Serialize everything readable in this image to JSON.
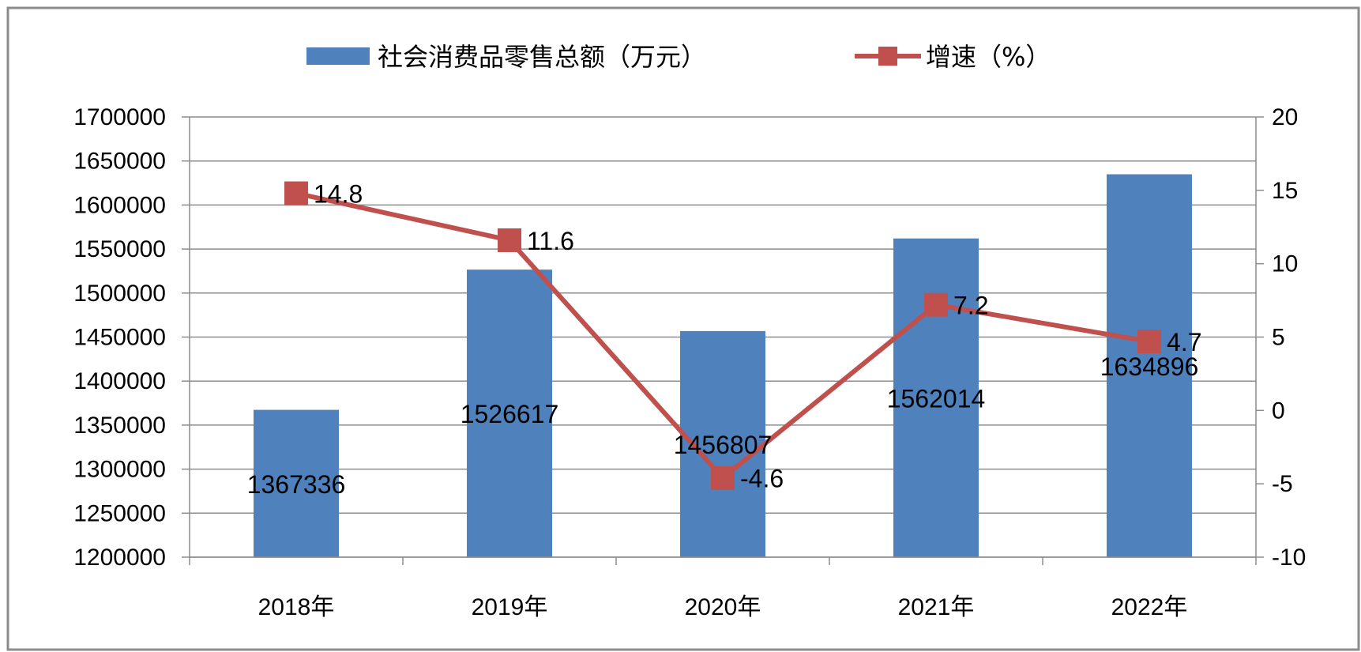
{
  "chart_data": {
    "type": "bar",
    "categories": [
      "2018年",
      "2019年",
      "2020年",
      "2021年",
      "2022年"
    ],
    "series": [
      {
        "name": "社会消费品零售总额（万元）",
        "type": "bar",
        "axis": "left",
        "color": "#4F81BD",
        "values": [
          1367336,
          1526617,
          1456807,
          1562014,
          1634896
        ],
        "labels": [
          "1367336",
          "1526617",
          "1456807",
          "1562014",
          "1634896"
        ]
      },
      {
        "name": "增速（%）",
        "type": "line",
        "axis": "right",
        "color": "#C0504D",
        "values": [
          14.8,
          11.6,
          -4.6,
          7.2,
          4.7
        ],
        "labels": [
          "14.8",
          "11.6",
          "-4.6",
          "7.2",
          "4.7"
        ]
      }
    ],
    "y_left": {
      "min": 1200000,
      "max": 1700000,
      "step": 50000,
      "ticks": [
        "1200000",
        "1250000",
        "1300000",
        "1350000",
        "1400000",
        "1450000",
        "1500000",
        "1550000",
        "1600000",
        "1650000",
        "1700000"
      ]
    },
    "y_right": {
      "min": -10,
      "max": 20,
      "step": 5,
      "ticks": [
        "-10",
        "-5",
        "0",
        "5",
        "10",
        "15",
        "20"
      ]
    },
    "grid": true,
    "legend": "top-center"
  }
}
